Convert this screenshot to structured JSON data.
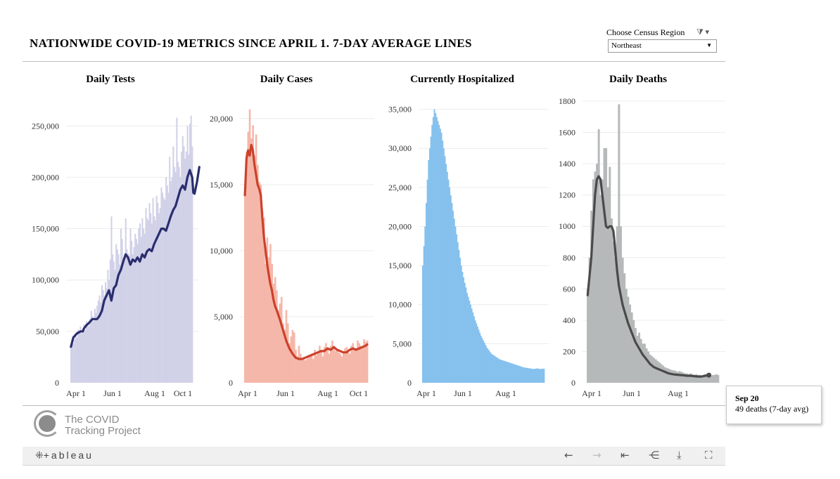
{
  "header": {
    "title": "NATIONWIDE COVID-19 METRICS SINCE APRIL 1. 7-DAY AVERAGE LINES",
    "filter_label": "Choose Census Region",
    "filter_value": "Northeast"
  },
  "tooltip": {
    "date": "Sep 20",
    "value_text": "49 deaths (7-day avg)"
  },
  "logo": {
    "line1": "The COVID",
    "line2": "Tracking Project"
  },
  "toolbar": {
    "brand": "+ableau"
  },
  "colors": {
    "tests_bar": "#d1d1e8",
    "tests_line": "#2a2e6e",
    "cases_bar": "#f5b7a9",
    "cases_line": "#cc412b",
    "hosp_bar": "#86c1ee",
    "deaths_bar": "#b6b9b9",
    "deaths_line": "#4a4a4a",
    "grid": "#ececec"
  },
  "chart_data": [
    {
      "type": "bar",
      "title": "Daily Tests",
      "x_ticks": [
        "Apr 1",
        "Jun 1",
        "Aug 1",
        "Oct 1"
      ],
      "y_ticks": [
        "0",
        "50,000",
        "100,000",
        "150,000",
        "200,000",
        "250,000"
      ],
      "ylim": [
        0,
        270000
      ],
      "bar_values": [
        35000,
        40000,
        38000,
        42000,
        46000,
        44000,
        52000,
        50000,
        55000,
        48000,
        53000,
        57000,
        51000,
        60000,
        58000,
        55000,
        62000,
        70000,
        65000,
        60000,
        72000,
        68000,
        75000,
        80000,
        85000,
        78000,
        95000,
        90000,
        85000,
        98000,
        92000,
        110000,
        100000,
        120000,
        162000,
        125000,
        118000,
        110000,
        135000,
        130000,
        125000,
        115000,
        150000,
        140000,
        122000,
        118000,
        160000,
        130000,
        126000,
        124000,
        150000,
        138000,
        125000,
        132000,
        145000,
        140000,
        135000,
        150000,
        155000,
        142000,
        160000,
        150000,
        145000,
        170000,
        160000,
        158000,
        175000,
        165000,
        155000,
        180000,
        162000,
        158000,
        182000,
        175000,
        165000,
        170000,
        190000,
        185000,
        180000,
        178000,
        200000,
        192000,
        185000,
        220000,
        196000,
        200000,
        230000,
        210000,
        205000,
        258000,
        215000,
        210000,
        200000,
        225000,
        240000,
        230000,
        218000,
        225000,
        250000,
        222000,
        252000,
        260000,
        230000
      ],
      "avg_line": [
        [
          0,
          35000
        ],
        [
          2,
          44000
        ],
        [
          5,
          48000
        ],
        [
          8,
          50000
        ],
        [
          10,
          50000
        ],
        [
          11,
          53000
        ],
        [
          13,
          56000
        ],
        [
          15,
          58000
        ],
        [
          18,
          62000
        ],
        [
          22,
          62000
        ],
        [
          24,
          65000
        ],
        [
          26,
          70000
        ],
        [
          28,
          80000
        ],
        [
          30,
          85000
        ],
        [
          32,
          90000
        ],
        [
          34,
          80000
        ],
        [
          36,
          92000
        ],
        [
          38,
          95000
        ],
        [
          40,
          105000
        ],
        [
          42,
          110000
        ],
        [
          44,
          118000
        ],
        [
          46,
          125000
        ],
        [
          48,
          122000
        ],
        [
          50,
          115000
        ],
        [
          52,
          120000
        ],
        [
          54,
          118000
        ],
        [
          56,
          122000
        ],
        [
          58,
          118000
        ],
        [
          60,
          125000
        ],
        [
          62,
          122000
        ],
        [
          64,
          128000
        ],
        [
          66,
          130000
        ],
        [
          68,
          128000
        ],
        [
          70,
          135000
        ],
        [
          72,
          140000
        ],
        [
          74,
          145000
        ],
        [
          76,
          150000
        ],
        [
          78,
          150000
        ],
        [
          80,
          148000
        ],
        [
          82,
          155000
        ],
        [
          84,
          162000
        ],
        [
          86,
          168000
        ],
        [
          88,
          172000
        ],
        [
          90,
          180000
        ],
        [
          92,
          188000
        ],
        [
          94,
          192000
        ],
        [
          96,
          188000
        ],
        [
          98,
          200000
        ],
        [
          100,
          207000
        ],
        [
          102,
          200000
        ],
        [
          103,
          185000
        ],
        [
          104,
          184000
        ],
        [
          106,
          195000
        ],
        [
          108,
          210000
        ]
      ]
    },
    {
      "type": "bar",
      "title": "Daily Cases",
      "x_ticks": [
        "Apr 1",
        "Jun 1",
        "Aug 1",
        "Oct 1"
      ],
      "y_ticks": [
        "0",
        "5,000",
        "10,000",
        "15,000",
        "20,000"
      ],
      "ylim": [
        0,
        21000
      ],
      "bar_values": [
        14200,
        17500,
        19000,
        20700,
        18500,
        19500,
        17200,
        18800,
        16500,
        15200,
        15000,
        13000,
        12500,
        9000,
        11000,
        9500,
        10500,
        9000,
        7500,
        8000,
        7000,
        5500,
        6000,
        6500,
        4500,
        4000,
        5500,
        4500,
        3000,
        3500,
        4000,
        3800,
        2500,
        2000,
        2800,
        2200,
        1800,
        1900,
        1700,
        1800,
        1900,
        2000,
        2200,
        1800,
        2500,
        2100,
        2300,
        2800,
        2500,
        2000,
        2700,
        3000,
        2600,
        2200,
        2800,
        3200,
        2600,
        2400,
        2500,
        2300,
        2200,
        2000,
        2400,
        2600,
        2700,
        2400,
        2200,
        2800,
        3000,
        2500,
        2600,
        3200,
        3000,
        2800,
        2700,
        3300,
        3100,
        3200
      ],
      "avg_line": [
        [
          0,
          14200
        ],
        [
          1,
          17000
        ],
        [
          2,
          17600
        ],
        [
          3,
          17200
        ],
        [
          4,
          18000
        ],
        [
          5,
          17600
        ],
        [
          6,
          16500
        ],
        [
          7,
          15800
        ],
        [
          8,
          15000
        ],
        [
          9,
          14700
        ],
        [
          10,
          14200
        ],
        [
          11,
          12500
        ],
        [
          12,
          11000
        ],
        [
          13,
          10000
        ],
        [
          14,
          9000
        ],
        [
          15,
          8200
        ],
        [
          16,
          7500
        ],
        [
          17,
          7000
        ],
        [
          18,
          6300
        ],
        [
          19,
          5800
        ],
        [
          20,
          5500
        ],
        [
          22,
          4800
        ],
        [
          24,
          4000
        ],
        [
          26,
          3200
        ],
        [
          28,
          2600
        ],
        [
          30,
          2200
        ],
        [
          32,
          1900
        ],
        [
          34,
          1800
        ],
        [
          36,
          1800
        ],
        [
          38,
          1900
        ],
        [
          40,
          2000
        ],
        [
          42,
          2100
        ],
        [
          44,
          2200
        ],
        [
          46,
          2300
        ],
        [
          48,
          2400
        ],
        [
          50,
          2400
        ],
        [
          52,
          2600
        ],
        [
          54,
          2500
        ],
        [
          56,
          2700
        ],
        [
          58,
          2500
        ],
        [
          60,
          2400
        ],
        [
          62,
          2300
        ],
        [
          64,
          2300
        ],
        [
          66,
          2500
        ],
        [
          68,
          2600
        ],
        [
          70,
          2500
        ],
        [
          72,
          2600
        ],
        [
          74,
          2700
        ],
        [
          76,
          2800
        ],
        [
          77,
          2900
        ]
      ]
    },
    {
      "type": "bar",
      "title": "Currently Hospitalized",
      "x_ticks": [
        "Apr 1",
        "Jun 1",
        "Aug 1"
      ],
      "y_ticks": [
        "0",
        "5,000",
        "10,000",
        "15,000",
        "20,000",
        "25,000",
        "30,000",
        "35,000"
      ],
      "ylim": [
        0,
        35500
      ],
      "bar_values": [
        15000,
        17500,
        20000,
        23000,
        26000,
        28500,
        30000,
        31500,
        33000,
        34000,
        35000,
        34500,
        34000,
        33500,
        33000,
        32500,
        32000,
        31000,
        30000,
        29000,
        28000,
        27000,
        26000,
        25000,
        24000,
        23000,
        22000,
        21000,
        20000,
        19000,
        18000,
        17000,
        16000,
        15000,
        14200,
        13500,
        12800,
        12200,
        11500,
        11000,
        10500,
        10000,
        9500,
        9000,
        8500,
        8000,
        7600,
        7200,
        6800,
        6400,
        6000,
        5700,
        5400,
        5100,
        4800,
        4500,
        4300,
        4100,
        3900,
        3700,
        3600,
        3500,
        3400,
        3300,
        3200,
        3100,
        3000,
        2950,
        2900,
        2850,
        2800,
        2750,
        2700,
        2650,
        2600,
        2550,
        2500,
        2450,
        2400,
        2350,
        2300,
        2250,
        2200,
        2150,
        2100,
        2050,
        2000,
        1950,
        1950,
        1900,
        1900,
        1850,
        1850,
        1800,
        1800,
        1750,
        1800,
        1800,
        1850,
        1800,
        1800,
        1750,
        1800,
        1800,
        1800
      ]
    },
    {
      "type": "bar",
      "title": "Daily Deaths",
      "x_ticks": [
        "Apr 1",
        "Jun 1",
        "Aug 1"
      ],
      "y_ticks": [
        "0",
        "200",
        "400",
        "600",
        "800",
        "1000",
        "1200",
        "1400",
        "1600",
        "1800"
      ],
      "ylim": [
        0,
        1800
      ],
      "bar_values": [
        600,
        800,
        1100,
        1300,
        1350,
        1400,
        1620,
        1200,
        1300,
        1500,
        1500,
        1250,
        1380,
        1050,
        900,
        800,
        1000,
        1780,
        1000,
        800,
        700,
        600,
        550,
        500,
        450,
        400,
        350,
        300,
        320,
        280,
        250,
        250,
        220,
        200,
        180,
        170,
        160,
        150,
        140,
        130,
        120,
        110,
        100,
        95,
        90,
        85,
        80,
        80,
        75,
        70,
        75,
        70,
        65,
        60,
        60,
        55,
        60,
        55,
        50,
        55,
        50,
        50,
        45,
        50,
        55,
        50,
        45,
        45,
        50,
        50,
        55,
        50
      ],
      "avg_line": [
        [
          0,
          560
        ],
        [
          2,
          800
        ],
        [
          4,
          1200
        ],
        [
          5,
          1300
        ],
        [
          6,
          1320
        ],
        [
          7,
          1300
        ],
        [
          8,
          1200
        ],
        [
          9,
          1100
        ],
        [
          10,
          1000
        ],
        [
          11,
          990
        ],
        [
          12,
          1000
        ],
        [
          13,
          1000
        ],
        [
          14,
          970
        ],
        [
          15,
          850
        ],
        [
          16,
          720
        ],
        [
          17,
          620
        ],
        [
          18,
          560
        ],
        [
          19,
          500
        ],
        [
          20,
          460
        ],
        [
          22,
          380
        ],
        [
          24,
          320
        ],
        [
          26,
          260
        ],
        [
          28,
          220
        ],
        [
          30,
          180
        ],
        [
          32,
          150
        ],
        [
          34,
          120
        ],
        [
          36,
          100
        ],
        [
          38,
          90
        ],
        [
          40,
          80
        ],
        [
          42,
          70
        ],
        [
          44,
          60
        ],
        [
          46,
          55
        ],
        [
          48,
          52
        ],
        [
          50,
          50
        ],
        [
          52,
          48
        ],
        [
          54,
          45
        ],
        [
          56,
          45
        ],
        [
          58,
          42
        ],
        [
          60,
          40
        ],
        [
          62,
          40
        ],
        [
          64,
          45
        ],
        [
          66,
          49
        ]
      ]
    }
  ]
}
